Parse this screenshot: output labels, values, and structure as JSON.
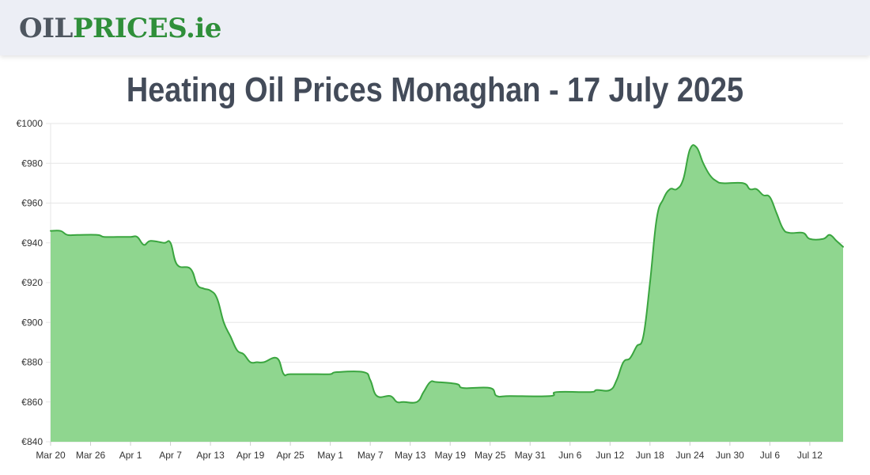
{
  "header": {
    "logo_part1": "OIL",
    "logo_part2": "PRICES",
    "logo_part3": ".ie"
  },
  "title": "Heating Oil Prices Monaghan - 17 July 2025",
  "colors": {
    "line": "#3aa53f",
    "fill": "#8fd68f",
    "grid": "#e6e6e6"
  },
  "chart_data": {
    "type": "area",
    "title": "Heating Oil Prices Monaghan - 17 July 2025",
    "xlabel": "",
    "ylabel": "",
    "ylim": [
      840,
      1000
    ],
    "ytick_step": 20,
    "ytick_prefix": "€",
    "grid": true,
    "legend": "none",
    "x_tick_labels": [
      "Mar 20",
      "Mar 26",
      "Apr 1",
      "Apr 7",
      "Apr 13",
      "Apr 19",
      "Apr 25",
      "May 1",
      "May 7",
      "May 13",
      "May 19",
      "May 25",
      "May 31",
      "Jun 6",
      "Jun 12",
      "Jun 18",
      "Jun 24",
      "Jun 30",
      "Jul 6",
      "Jul 12"
    ],
    "x_tick_interval_days": 6,
    "x_day_range": [
      0,
      119
    ],
    "points": [
      [
        0,
        946
      ],
      [
        1.5,
        946
      ],
      [
        2.5,
        944
      ],
      [
        4,
        944
      ],
      [
        7,
        944
      ],
      [
        8,
        943
      ],
      [
        10,
        943
      ],
      [
        12,
        943
      ],
      [
        13,
        943
      ],
      [
        14,
        939
      ],
      [
        15,
        941
      ],
      [
        17,
        940
      ],
      [
        18,
        940
      ],
      [
        19,
        929
      ],
      [
        21,
        927
      ],
      [
        22,
        919
      ],
      [
        23,
        917
      ],
      [
        24,
        916
      ],
      [
        25,
        912
      ],
      [
        26,
        900
      ],
      [
        27,
        893
      ],
      [
        28,
        886
      ],
      [
        29,
        884
      ],
      [
        30,
        880
      ],
      [
        31,
        880
      ],
      [
        32,
        880
      ],
      [
        34,
        882
      ],
      [
        35,
        874
      ],
      [
        36,
        874
      ],
      [
        40,
        874
      ],
      [
        42,
        874
      ],
      [
        43,
        875
      ],
      [
        47,
        875
      ],
      [
        48,
        871
      ],
      [
        49,
        863
      ],
      [
        51,
        863
      ],
      [
        52,
        860
      ],
      [
        53,
        860
      ],
      [
        55,
        860
      ],
      [
        56,
        865
      ],
      [
        57,
        870
      ],
      [
        58,
        870
      ],
      [
        61,
        869
      ],
      [
        62,
        867
      ],
      [
        66,
        867
      ],
      [
        67,
        863
      ],
      [
        69,
        863
      ],
      [
        75,
        863
      ],
      [
        76,
        865
      ],
      [
        81,
        865
      ],
      [
        82,
        866
      ],
      [
        84,
        866
      ],
      [
        85,
        871
      ],
      [
        86,
        880
      ],
      [
        87,
        882
      ],
      [
        88,
        888
      ],
      [
        89,
        893
      ],
      [
        90,
        920
      ],
      [
        91,
        952
      ],
      [
        92,
        962
      ],
      [
        93,
        967
      ],
      [
        94,
        967
      ],
      [
        95,
        972
      ],
      [
        96,
        987
      ],
      [
        97,
        988
      ],
      [
        98,
        980
      ],
      [
        99,
        974
      ],
      [
        100,
        971
      ],
      [
        101,
        970
      ],
      [
        104,
        970
      ],
      [
        105,
        967
      ],
      [
        106,
        967
      ],
      [
        107,
        964
      ],
      [
        108,
        963
      ],
      [
        109,
        955
      ],
      [
        110,
        947
      ],
      [
        111,
        945
      ],
      [
        113,
        945
      ],
      [
        114,
        942
      ],
      [
        116,
        942
      ],
      [
        117,
        944
      ],
      [
        118,
        941
      ],
      [
        119,
        938
      ]
    ]
  }
}
